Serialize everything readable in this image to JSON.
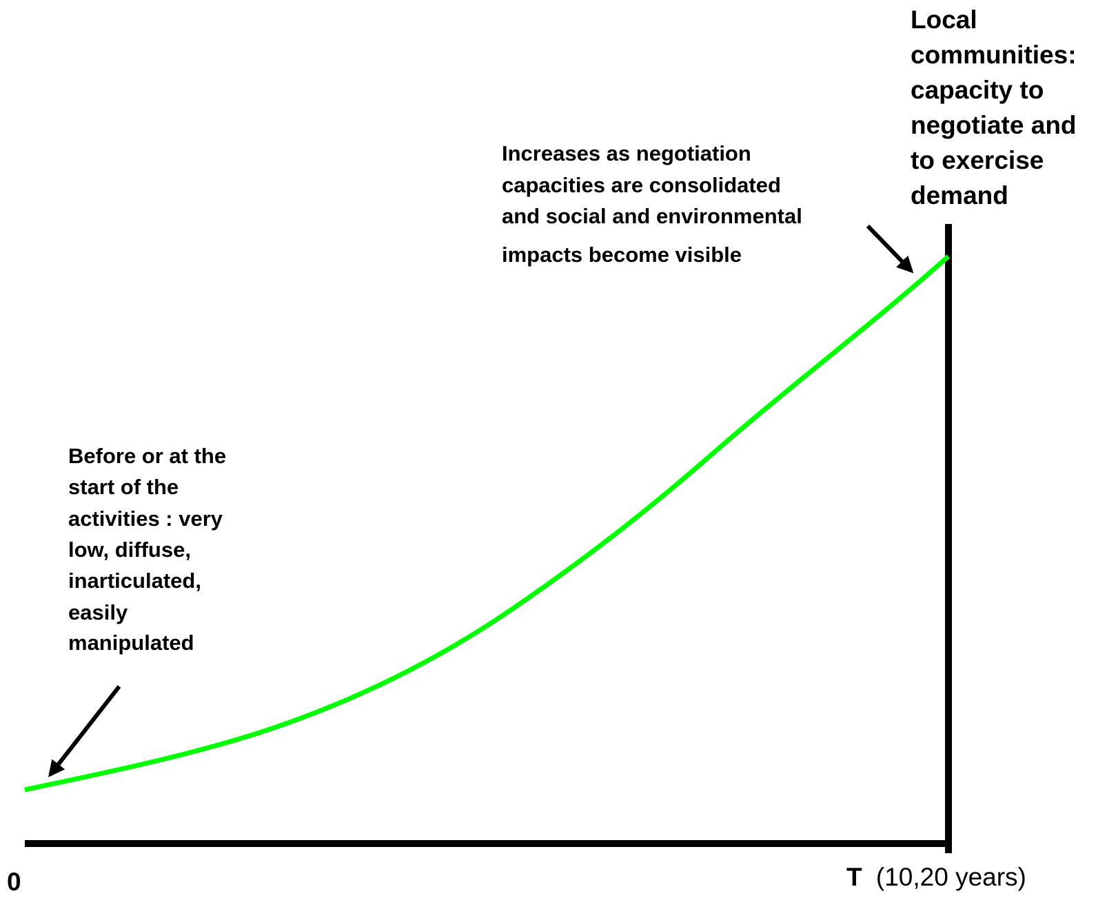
{
  "y_axis_title": {
    "lines": [
      "Local",
      "communities:",
      "capacity to",
      "negotiate and",
      "to exercise",
      "demand"
    ]
  },
  "annotation_end": {
    "lines": [
      "Increases as negotiation",
      "capacities are consolidated",
      "and social and environmental",
      "impacts become visible"
    ]
  },
  "annotation_start": {
    "lines": [
      "Before or at the",
      "start of the",
      "activities : very",
      "low, diffuse,",
      "inarticulated,",
      "easily",
      "manipulated"
    ]
  },
  "x_axis": {
    "origin_label": "0",
    "end_label": {
      "symbol": "T",
      "note": "(10,20 years)"
    }
  }
}
